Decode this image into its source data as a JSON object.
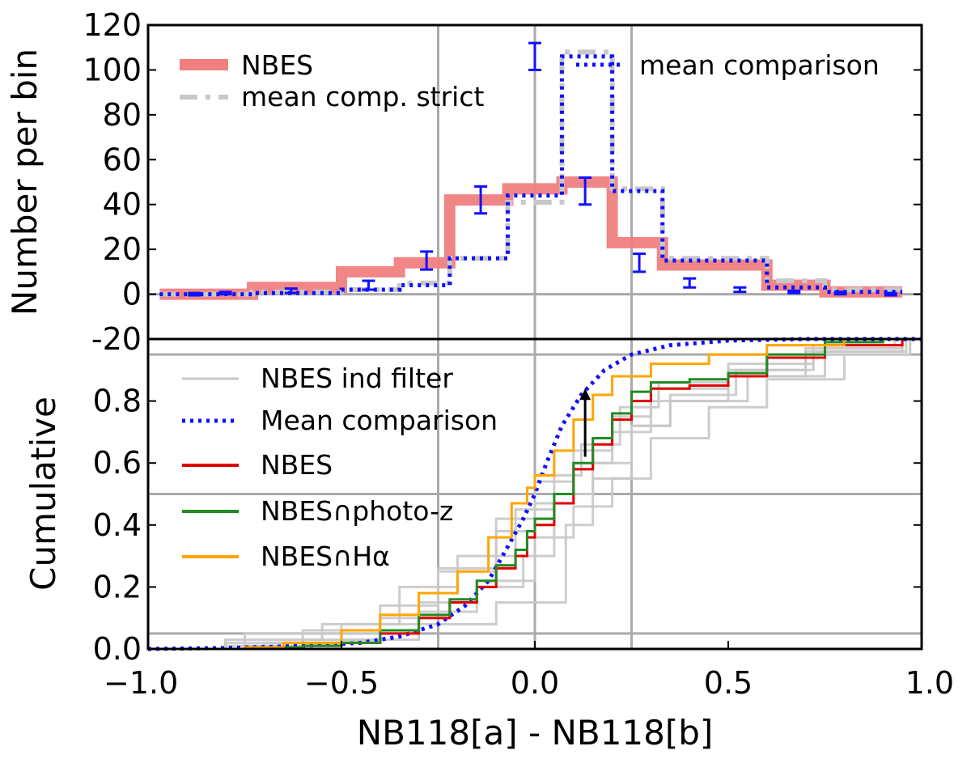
{
  "chart_data": [
    {
      "type": "histogram",
      "panel": "top",
      "ylabel": "Number per bin",
      "xlim": [
        -1.0,
        1.0
      ],
      "ylim": [
        -20,
        120
      ],
      "yticks": [
        "120",
        "100",
        "80",
        "60",
        "40",
        "20",
        "0",
        "-20"
      ],
      "ytick_values": [
        120,
        100,
        80,
        60,
        40,
        20,
        0,
        -20
      ],
      "vlines": [
        -0.25,
        0.0,
        0.25
      ],
      "hlines": [
        0
      ],
      "bin_edges": [
        -0.97,
        -0.73,
        -0.5,
        -0.35,
        -0.22,
        -0.07,
        0.07,
        0.2,
        0.33,
        0.6,
        0.75,
        0.95
      ],
      "series": [
        {
          "name": "NBES",
          "values": [
            0,
            3,
            10,
            14,
            42,
            47,
            50,
            23,
            13,
            4,
            1
          ],
          "color": "#f08080"
        },
        {
          "name": "mean comp. strict",
          "values": [
            0,
            1,
            2,
            5,
            16,
            41,
            108,
            47,
            16,
            6,
            2
          ],
          "color": "#c8c8c8"
        },
        {
          "name": "mean comparison",
          "values": [
            0,
            0.5,
            2,
            4,
            16,
            44,
            106,
            46,
            15,
            3,
            1
          ],
          "color": "#1010ff"
        }
      ],
      "error_bars": {
        "x": [
          -0.88,
          -0.8,
          -0.63,
          -0.43,
          -0.28,
          -0.14,
          0.0,
          0.13,
          0.27,
          0.4,
          0.53,
          0.67,
          0.79,
          0.92
        ],
        "y": [
          0,
          0.5,
          1.5,
          4,
          15,
          42,
          106,
          46,
          14,
          5,
          2,
          1,
          0.5,
          0
        ],
        "err": [
          0.5,
          0.5,
          1,
          2,
          4,
          6,
          6,
          6,
          4,
          2,
          1,
          0.5,
          0.5,
          0.5
        ],
        "color": "#1010ff"
      },
      "legend": [
        "NBES",
        "mean comp. strict",
        "mean comparison"
      ]
    },
    {
      "type": "line",
      "panel": "bottom",
      "xlabel": "NB118[a] - NB118[b]",
      "ylabel": "Cumulative",
      "xlim": [
        -1.0,
        1.0
      ],
      "ylim": [
        0.0,
        1.0
      ],
      "xticks": [
        "−1.0",
        "−0.5",
        "0.0",
        "0.5",
        "1.0"
      ],
      "xtick_values": [
        -1.0,
        -0.5,
        0.0,
        0.5,
        1.0
      ],
      "yticks": [
        "0.0",
        "0.2",
        "0.4",
        "0.6",
        "0.8"
      ],
      "ytick_values": [
        0.0,
        0.2,
        0.4,
        0.6,
        0.8
      ],
      "vlines": [
        -0.25,
        0.0,
        0.25
      ],
      "hlines": [
        0.05,
        0.5,
        0.95
      ],
      "arrow": {
        "x": 0.13,
        "y_from": 0.62,
        "y_to": 0.84
      },
      "series": [
        {
          "name": "NBES ind filter",
          "color": "#c8c8c8",
          "lines": [
            {
              "x": [
                -1.0,
                -0.8,
                -0.6,
                -0.4,
                -0.25,
                -0.1,
                0.0,
                0.1,
                0.2,
                0.3,
                0.5,
                0.7,
                0.95
              ],
              "y": [
                0.0,
                0.01,
                0.03,
                0.1,
                0.25,
                0.42,
                0.54,
                0.64,
                0.75,
                0.84,
                0.9,
                0.97,
                1.0
              ]
            },
            {
              "x": [
                -1.0,
                -0.8,
                -0.6,
                -0.4,
                -0.25,
                -0.1,
                0.0,
                0.1,
                0.2,
                0.3,
                0.5,
                0.7,
                0.95
              ],
              "y": [
                0.0,
                0.02,
                0.06,
                0.14,
                0.26,
                0.38,
                0.47,
                0.6,
                0.7,
                0.8,
                0.88,
                0.96,
                1.0
              ]
            },
            {
              "x": [
                -1.0,
                -0.75,
                -0.5,
                -0.3,
                -0.15,
                -0.03,
                0.05,
                0.15,
                0.25,
                0.35,
                0.55,
                0.75,
                0.97
              ],
              "y": [
                0.0,
                0.05,
                0.08,
                0.15,
                0.2,
                0.3,
                0.5,
                0.6,
                0.72,
                0.8,
                0.88,
                0.95,
                1.0
              ]
            },
            {
              "x": [
                -1.0,
                -0.7,
                -0.5,
                -0.3,
                -0.15,
                0.0,
                0.1,
                0.2,
                0.3,
                0.45,
                0.6,
                0.8,
                0.97
              ],
              "y": [
                0.0,
                0.02,
                0.05,
                0.12,
                0.22,
                0.36,
                0.46,
                0.55,
                0.68,
                0.78,
                0.87,
                0.95,
                1.0
              ]
            },
            {
              "x": [
                -1.0,
                -0.8,
                -0.55,
                -0.35,
                -0.2,
                -0.05,
                0.05,
                0.12,
                0.22,
                0.32,
                0.5,
                0.72,
                0.93
              ],
              "y": [
                0.0,
                0.03,
                0.08,
                0.2,
                0.3,
                0.45,
                0.56,
                0.66,
                0.78,
                0.86,
                0.92,
                0.98,
                1.0
              ]
            },
            {
              "x": [
                -1.0,
                -0.75,
                -0.5,
                -0.3,
                -0.1,
                0.0,
                0.08,
                0.15,
                0.25,
                0.35,
                0.52,
                0.72,
                0.96
              ],
              "y": [
                0.0,
                0.01,
                0.03,
                0.08,
                0.15,
                0.15,
                0.4,
                0.55,
                0.72,
                0.82,
                0.9,
                0.96,
                1.0
              ]
            }
          ]
        },
        {
          "name": "Mean comparison",
          "color": "#1010ff",
          "x": [
            -1.0,
            -0.8,
            -0.6,
            -0.45,
            -0.35,
            -0.25,
            -0.18,
            -0.12,
            -0.07,
            -0.03,
            0.0,
            0.03,
            0.07,
            0.12,
            0.18,
            0.25,
            0.35,
            0.5,
            0.7,
            1.0
          ],
          "y": [
            0.0,
            0.003,
            0.01,
            0.02,
            0.04,
            0.08,
            0.14,
            0.22,
            0.33,
            0.42,
            0.5,
            0.6,
            0.72,
            0.82,
            0.9,
            0.95,
            0.98,
            0.995,
            1.0,
            1.0
          ]
        },
        {
          "name": "NBES",
          "color": "#e00000",
          "x": [
            -0.93,
            -0.75,
            -0.6,
            -0.5,
            -0.4,
            -0.3,
            -0.22,
            -0.15,
            -0.1,
            -0.05,
            -0.02,
            0.0,
            0.05,
            0.1,
            0.15,
            0.2,
            0.25,
            0.3,
            0.4,
            0.5,
            0.6,
            0.75,
            0.95
          ],
          "y": [
            0.0,
            0.005,
            0.01,
            0.02,
            0.05,
            0.1,
            0.15,
            0.2,
            0.26,
            0.3,
            0.36,
            0.4,
            0.47,
            0.58,
            0.66,
            0.74,
            0.8,
            0.84,
            0.85,
            0.88,
            0.94,
            0.98,
            1.0
          ]
        },
        {
          "name": "NBES∩photo-z",
          "color": "#228b22",
          "x": [
            -0.93,
            -0.75,
            -0.6,
            -0.5,
            -0.4,
            -0.3,
            -0.22,
            -0.15,
            -0.1,
            -0.05,
            -0.02,
            0.0,
            0.05,
            0.1,
            0.15,
            0.2,
            0.25,
            0.3,
            0.4,
            0.5,
            0.6,
            0.75,
            0.9
          ],
          "y": [
            0.0,
            0.005,
            0.01,
            0.02,
            0.06,
            0.11,
            0.16,
            0.22,
            0.27,
            0.32,
            0.38,
            0.42,
            0.5,
            0.6,
            0.68,
            0.76,
            0.83,
            0.86,
            0.87,
            0.89,
            0.95,
            0.99,
            1.0
          ]
        },
        {
          "name": "NBES∩Hα",
          "color": "#ffa500",
          "x": [
            -0.9,
            -0.75,
            -0.65,
            -0.5,
            -0.4,
            -0.3,
            -0.2,
            -0.12,
            -0.06,
            -0.02,
            0.0,
            0.05,
            0.1,
            0.15,
            0.2,
            0.3,
            0.45,
            0.6,
            0.8
          ],
          "y": [
            0.0,
            0.005,
            0.02,
            0.06,
            0.11,
            0.18,
            0.25,
            0.36,
            0.47,
            0.52,
            0.56,
            0.64,
            0.74,
            0.82,
            0.88,
            0.92,
            0.95,
            0.98,
            1.0
          ]
        }
      ],
      "legend": [
        "NBES ind filter",
        "Mean comparison",
        "NBES",
        "NBES∩photo-z",
        "NBES∩Hα"
      ]
    }
  ]
}
